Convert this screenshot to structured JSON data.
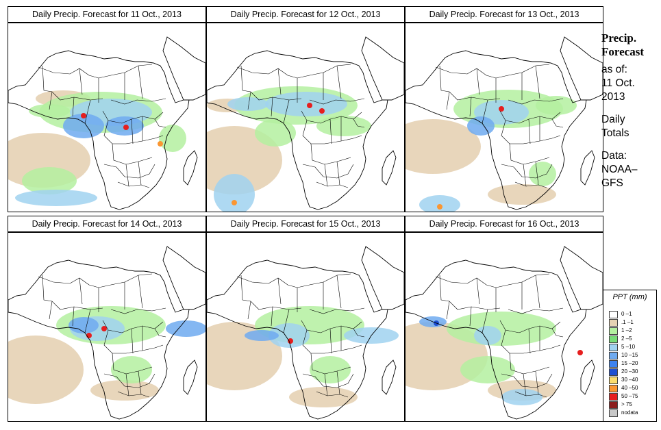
{
  "panels": [
    {
      "title": "Daily Precip. Forecast for  11 Oct., 2013",
      "variant": 0
    },
    {
      "title": "Daily Precip. Forecast for  12 Oct., 2013",
      "variant": 1
    },
    {
      "title": "Daily Precip. Forecast for  13 Oct., 2013",
      "variant": 2
    },
    {
      "title": "Daily Precip. Forecast for  14 Oct., 2013",
      "variant": 3
    },
    {
      "title": "Daily Precip. Forecast for  15 Oct., 2013",
      "variant": 4
    },
    {
      "title": "Daily Precip. Forecast for  16 Oct., 2013",
      "variant": 5
    }
  ],
  "side": {
    "line1": "Precip.",
    "line2": "Forecast",
    "asof": "as of:",
    "date1": "11 Oct.",
    "date2": "2013",
    "daily": "Daily",
    "totals": "Totals",
    "data_label": "Data:",
    "source1": "NOAA–",
    "source2": "GFS"
  },
  "legend": {
    "title": "PPT (mm)",
    "items": [
      {
        "label": "0 –1",
        "color": "#ffffff"
      },
      {
        "label": ".1 –1",
        "color": "#e6d2b4"
      },
      {
        "label": "1 –2",
        "color": "#b4f0a0"
      },
      {
        "label": "2 –5",
        "color": "#78dc78"
      },
      {
        "label": "5 –10",
        "color": "#a0d2f0"
      },
      {
        "label": "10 –15",
        "color": "#6eaaf0"
      },
      {
        "label": "15 –20",
        "color": "#3c82f0"
      },
      {
        "label": "20 –30",
        "color": "#1e50d2"
      },
      {
        "label": "30 –40",
        "color": "#fadc6e"
      },
      {
        "label": "40 –50",
        "color": "#fa9632"
      },
      {
        "label": "50 –75",
        "color": "#e61e1e"
      },
      {
        "label": "> 75",
        "color": "#8c1e1e"
      },
      {
        "label": "nodata",
        "color": "#c8c8c8"
      }
    ]
  },
  "colors": {
    "dry": "#e6d2b4",
    "light_green": "#b4f0a0",
    "green": "#78dc78",
    "light_blue": "#a0d2f0",
    "blue": "#6eaaf0",
    "dark_blue": "#3c82f0",
    "navy": "#1e50d2",
    "orange": "#fa9632",
    "red": "#e61e1e"
  }
}
